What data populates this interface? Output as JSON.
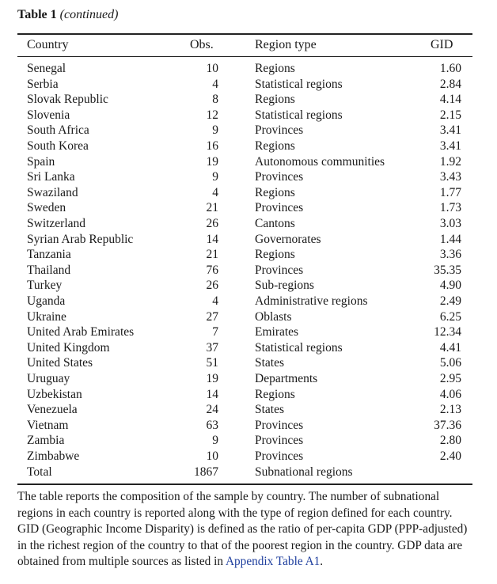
{
  "table_title": {
    "label": "Table 1",
    "suffix": "(continued)"
  },
  "headers": {
    "country": "Country",
    "obs": "Obs.",
    "region_type": "Region type",
    "gid": "GID"
  },
  "rows": [
    {
      "country": "Senegal",
      "obs": "10",
      "region_type": "Regions",
      "gid": "1.60"
    },
    {
      "country": "Serbia",
      "obs": "4",
      "region_type": "Statistical regions",
      "gid": "2.84"
    },
    {
      "country": "Slovak Republic",
      "obs": "8",
      "region_type": "Regions",
      "gid": "4.14"
    },
    {
      "country": "Slovenia",
      "obs": "12",
      "region_type": "Statistical regions",
      "gid": "2.15"
    },
    {
      "country": "South Africa",
      "obs": "9",
      "region_type": "Provinces",
      "gid": "3.41"
    },
    {
      "country": "South Korea",
      "obs": "16",
      "region_type": "Regions",
      "gid": "3.41"
    },
    {
      "country": "Spain",
      "obs": "19",
      "region_type": "Autonomous communities",
      "gid": "1.92"
    },
    {
      "country": "Sri Lanka",
      "obs": "9",
      "region_type": "Provinces",
      "gid": "3.43"
    },
    {
      "country": "Swaziland",
      "obs": "4",
      "region_type": "Regions",
      "gid": "1.77"
    },
    {
      "country": "Sweden",
      "obs": "21",
      "region_type": "Provinces",
      "gid": "1.73"
    },
    {
      "country": "Switzerland",
      "obs": "26",
      "region_type": "Cantons",
      "gid": "3.03"
    },
    {
      "country": "Syrian Arab Republic",
      "obs": "14",
      "region_type": "Governorates",
      "gid": "1.44"
    },
    {
      "country": "Tanzania",
      "obs": "21",
      "region_type": "Regions",
      "gid": "3.36"
    },
    {
      "country": "Thailand",
      "obs": "76",
      "region_type": "Provinces",
      "gid": "35.35"
    },
    {
      "country": "Turkey",
      "obs": "26",
      "region_type": "Sub-regions",
      "gid": "4.90"
    },
    {
      "country": "Uganda",
      "obs": "4",
      "region_type": "Administrative regions",
      "gid": "2.49"
    },
    {
      "country": "Ukraine",
      "obs": "27",
      "region_type": "Oblasts",
      "gid": "6.25"
    },
    {
      "country": "United Arab Emirates",
      "obs": "7",
      "region_type": "Emirates",
      "gid": "12.34"
    },
    {
      "country": "United Kingdom",
      "obs": "37",
      "region_type": "Statistical regions",
      "gid": "4.41"
    },
    {
      "country": "United States",
      "obs": "51",
      "region_type": "States",
      "gid": "5.06"
    },
    {
      "country": "Uruguay",
      "obs": "19",
      "region_type": "Departments",
      "gid": "2.95"
    },
    {
      "country": "Uzbekistan",
      "obs": "14",
      "region_type": "Regions",
      "gid": "4.06"
    },
    {
      "country": "Venezuela",
      "obs": "24",
      "region_type": "States",
      "gid": "2.13"
    },
    {
      "country": "Vietnam",
      "obs": "63",
      "region_type": "Provinces",
      "gid": "37.36"
    },
    {
      "country": "Zambia",
      "obs": "9",
      "region_type": "Provinces",
      "gid": "2.80"
    },
    {
      "country": "Zimbabwe",
      "obs": "10",
      "region_type": "Provinces",
      "gid": "2.40"
    },
    {
      "country": "Total",
      "obs": "1867",
      "region_type": "Subnational regions",
      "gid": ""
    }
  ],
  "note": {
    "text": "The table reports the composition of the sample by country. The number of subnational regions in each country is reported along with the type of region defined for each country. GID (Geographic Income Disparity) is defined as the ratio of per-capita GDP (PPP-adjusted) in the richest region of the country to that of the poorest region in the country. GDP data are obtained from multiple sources as listed in ",
    "link": "Appendix Table A1",
    "end": "."
  }
}
